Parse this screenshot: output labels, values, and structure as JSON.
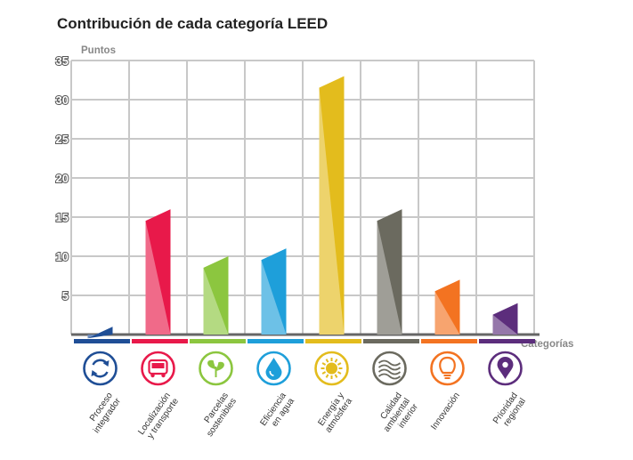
{
  "chart_data": {
    "type": "bar",
    "title": "Contribución de cada categoría LEED",
    "ylabel": "Puntos",
    "xlabel": "Categorías",
    "ylim": [
      0,
      35
    ],
    "yticks": [
      "35",
      "30",
      "25",
      "20",
      "15",
      "10",
      "5"
    ],
    "grid": true,
    "categories": [
      {
        "label": [
          "Proceso",
          "integrador"
        ],
        "value": 1,
        "color": "#1f4e96",
        "icon": "circular-arrows-icon"
      },
      {
        "label": [
          "Localización",
          "y transporte"
        ],
        "value": 16,
        "color": "#e8194a",
        "icon": "bus-icon"
      },
      {
        "label": [
          "Parcelas",
          "sostenibles"
        ],
        "value": 10,
        "color": "#8cc63f",
        "icon": "sprout-icon"
      },
      {
        "label": [
          "Eficiencia",
          "en agua"
        ],
        "value": 11,
        "color": "#1e9fda",
        "icon": "water-drop-icon"
      },
      {
        "label": [
          "Energía y",
          "atmósfera"
        ],
        "value": 33,
        "color": "#e3bc1d",
        "icon": "sun-icon"
      },
      {
        "label": [
          "Calidad",
          "ambiental",
          "interior"
        ],
        "value": 16,
        "color": "#6b6a5f",
        "icon": "air-flow-icon"
      },
      {
        "label": [
          "Innovación"
        ],
        "value": 7,
        "color": "#f37321",
        "icon": "light-bulb-icon"
      },
      {
        "label": [
          "Prioridad",
          "regional"
        ],
        "value": 4,
        "color": "#5c2d7c",
        "icon": "map-pin-icon"
      }
    ]
  }
}
